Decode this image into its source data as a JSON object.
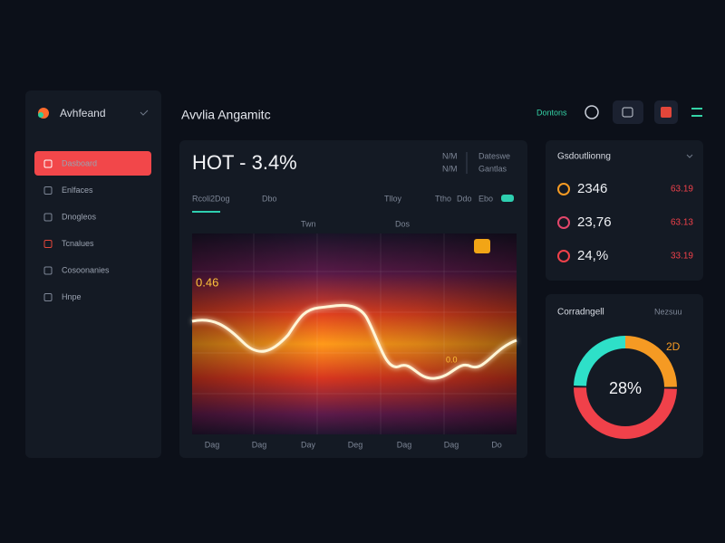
{
  "sidebar": {
    "brand": "Avhfeand",
    "nav": [
      "Dasboard",
      "Enlfaces",
      "Dnogleos",
      "Tcnalues",
      "Cosoonanies",
      "Hnpe"
    ]
  },
  "header": {
    "title": "Avvlia Angamitc",
    "action": "Dontons"
  },
  "main_card": {
    "headline": "HOT - 3.4%",
    "meta": [
      "N/M",
      "N/M",
      "Dateswe",
      "Gantlas"
    ],
    "tabs": [
      "Rcoli2Dog",
      "Dbo",
      "Tlloy",
      "Ttho",
      "Ddo",
      "Ebo"
    ],
    "chart_labels": [
      "Twn",
      "Dos",
      "0.46",
      "0.0"
    ],
    "x_labels": [
      "Dag",
      "Dag",
      "Day",
      "Deg",
      "Dag",
      "Dag",
      "Do"
    ]
  },
  "stats_card": {
    "title": "Gsdoutlionng",
    "rows": [
      {
        "value": "2346",
        "change": "63.19"
      },
      {
        "value": "23,76",
        "change": "63.13"
      },
      {
        "value": "24,%",
        "change": "33.19"
      }
    ]
  },
  "donut_card": {
    "title": "Corradngell",
    "link": "Nezsuu",
    "center": "28%",
    "side_label": "2D"
  }
}
